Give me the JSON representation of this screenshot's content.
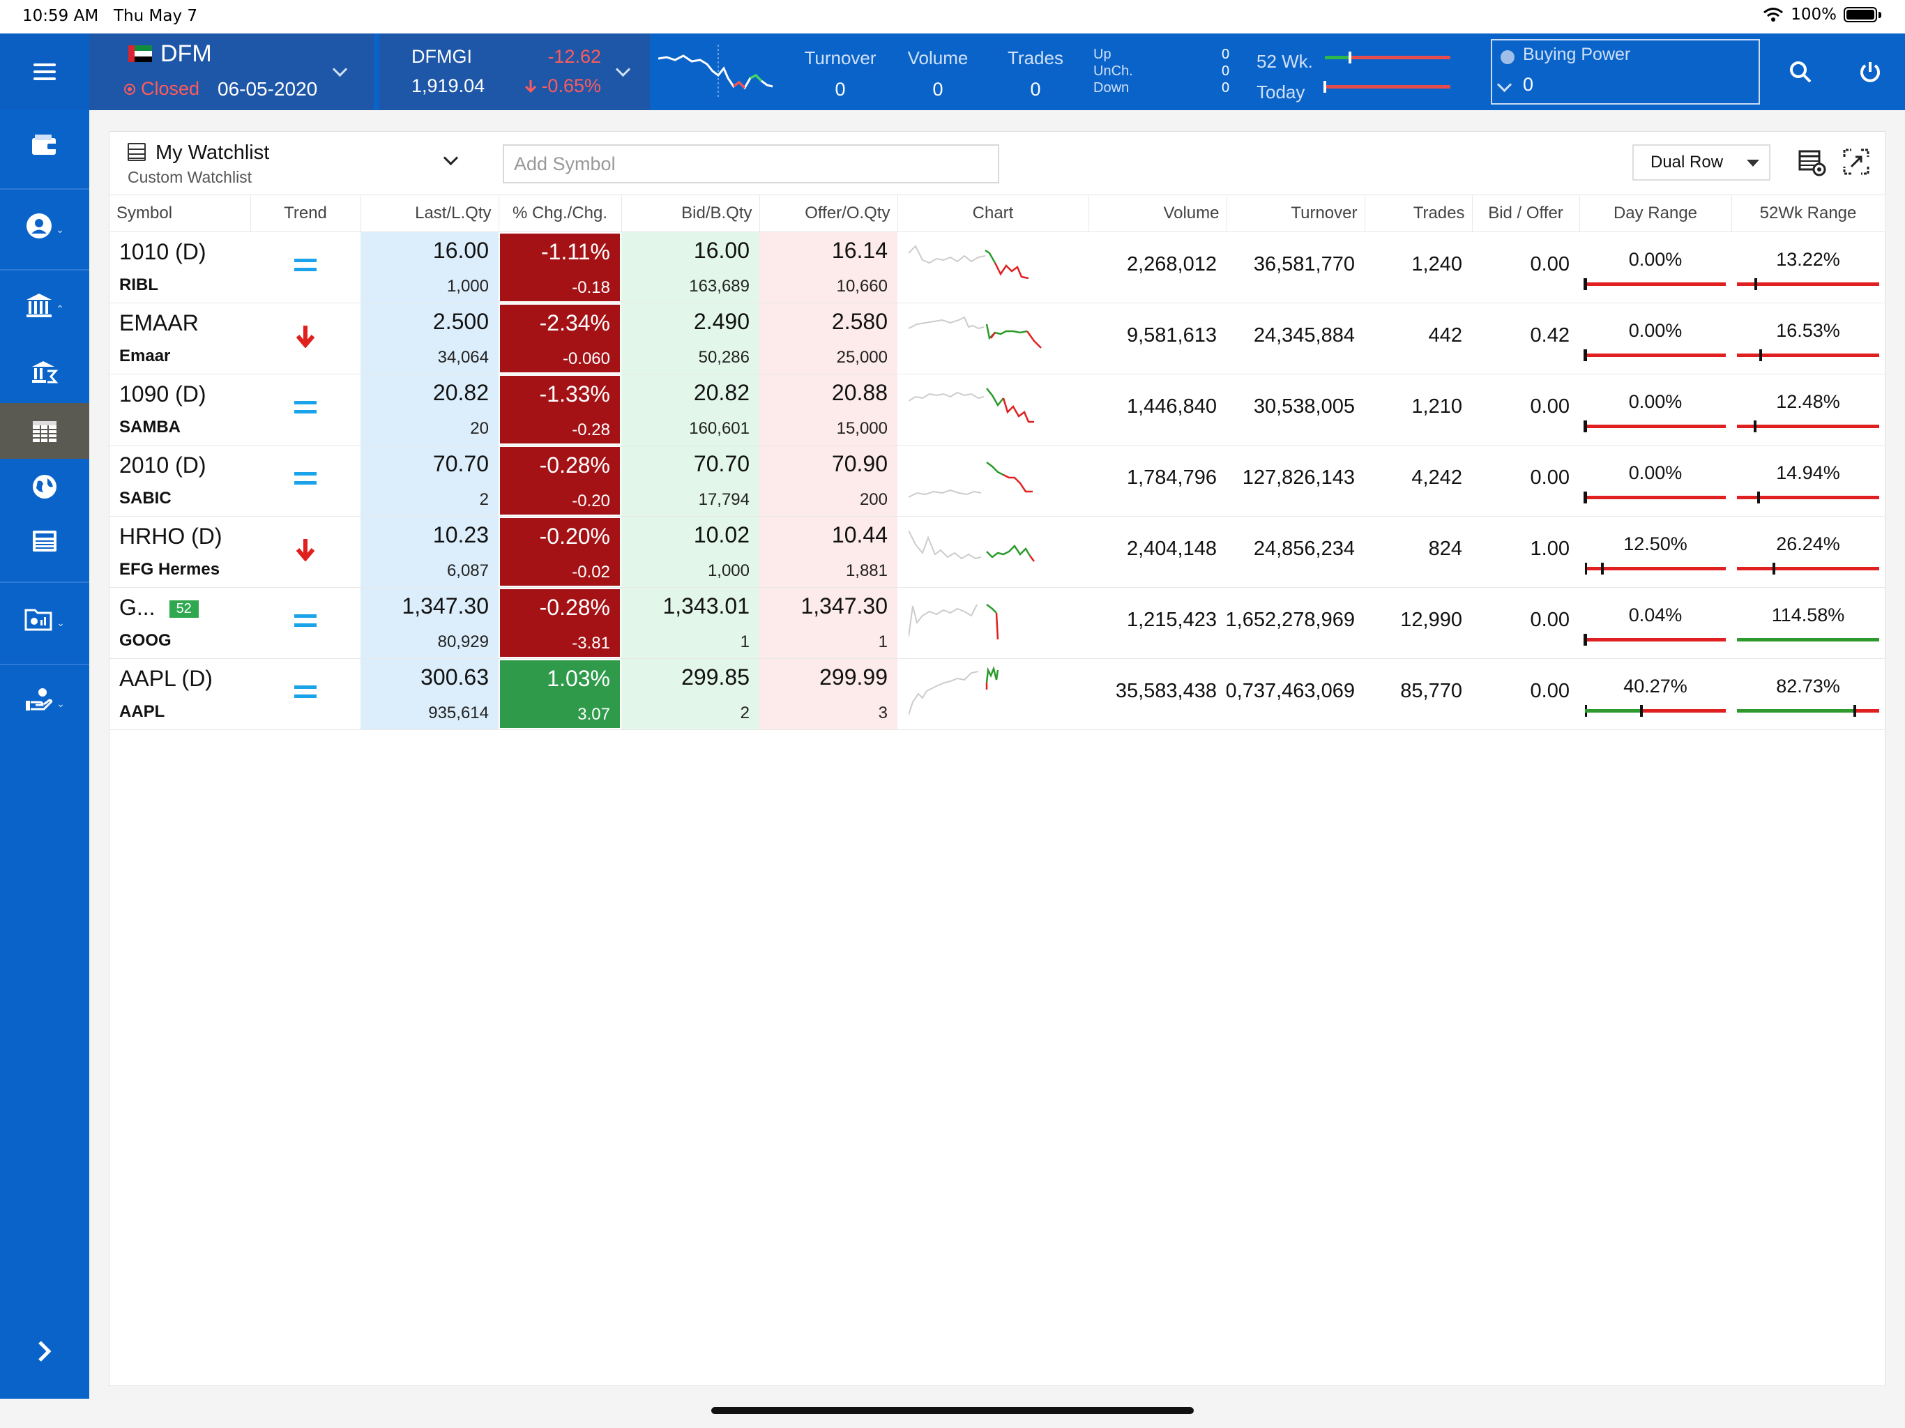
{
  "status_bar": {
    "time": "10:59 AM",
    "date": "Thu May 7",
    "battery": "100%"
  },
  "header": {
    "market": {
      "name": "DFM",
      "status": "Closed",
      "date": "06-05-2020"
    },
    "index": {
      "name": "DFMGI",
      "value": "1,919.04",
      "change": "-12.62",
      "pct": "-0.65%"
    },
    "stats": [
      {
        "label": "Turnover",
        "value": "0"
      },
      {
        "label": "Volume",
        "value": "0"
      },
      {
        "label": "Trades",
        "value": "0"
      }
    ],
    "breadth": {
      "up_label": "Up",
      "unch_label": "UnCh.",
      "down_label": "Down",
      "up": "0",
      "unch": "0",
      "down": "0"
    },
    "range": {
      "wk_label": "52 Wk.",
      "today_label": "Today",
      "wk_level": 0.2,
      "today_level": 0.0
    },
    "buying_power": {
      "label": "Buying Power",
      "value": "0"
    }
  },
  "watchlist": {
    "title": "My Watchlist",
    "subtitle": "Custom Watchlist",
    "search_placeholder": "Add Symbol",
    "view_mode": "Dual Row",
    "columns": [
      "Symbol",
      "Trend",
      "Last/L.Qty",
      "% Chg./Chg.",
      "Bid/B.Qty",
      "Offer/O.Qty",
      "Chart",
      "Volume",
      "Turnover",
      "Trades",
      "Bid / Offer",
      "Day Range",
      "52Wk Range"
    ],
    "rows": [
      {
        "symbol": "1010 (D)",
        "short": "RIBL",
        "badge": "",
        "trend": "flat",
        "last": "16.00",
        "lqty": "1,000",
        "pct": "-1.11%",
        "chg": "-0.18",
        "dir": "neg",
        "bid": "16.00",
        "bqty": "163,689",
        "offer": "16.14",
        "oqty": "10,660",
        "volume": "2,268,012",
        "turnover": "36,581,770",
        "trades": "1,240",
        "bidoffer": "0.00",
        "day_pct": "0.00%",
        "day_level": 0.0,
        "day_color": "red",
        "wk_pct": "13.22%",
        "wk_level": 0.13,
        "wk_color": "red"
      },
      {
        "symbol": "EMAAR",
        "short": "Emaar",
        "badge": "",
        "trend": "down",
        "last": "2.500",
        "lqty": "34,064",
        "pct": "-2.34%",
        "chg": "-0.060",
        "dir": "neg",
        "bid": "2.490",
        "bqty": "50,286",
        "offer": "2.580",
        "oqty": "25,000",
        "volume": "9,581,613",
        "turnover": "24,345,884",
        "trades": "442",
        "bidoffer": "0.42",
        "day_pct": "0.00%",
        "day_level": 0.0,
        "day_color": "red",
        "wk_pct": "16.53%",
        "wk_level": 0.165,
        "wk_color": "red"
      },
      {
        "symbol": "1090 (D)",
        "short": "SAMBA",
        "badge": "",
        "trend": "flat",
        "last": "20.82",
        "lqty": "20",
        "pct": "-1.33%",
        "chg": "-0.28",
        "dir": "neg",
        "bid": "20.82",
        "bqty": "160,601",
        "offer": "20.88",
        "oqty": "15,000",
        "volume": "1,446,840",
        "turnover": "30,538,005",
        "trades": "1,210",
        "bidoffer": "0.00",
        "day_pct": "0.00%",
        "day_level": 0.0,
        "day_color": "red",
        "wk_pct": "12.48%",
        "wk_level": 0.125,
        "wk_color": "red"
      },
      {
        "symbol": "2010 (D)",
        "short": "SABIC",
        "badge": "",
        "trend": "flat",
        "last": "70.70",
        "lqty": "2",
        "pct": "-0.28%",
        "chg": "-0.20",
        "dir": "neg",
        "bid": "70.70",
        "bqty": "17,794",
        "offer": "70.90",
        "oqty": "200",
        "volume": "1,784,796",
        "turnover": "127,826,143",
        "trades": "4,242",
        "bidoffer": "0.00",
        "day_pct": "0.00%",
        "day_level": 0.0,
        "day_color": "red",
        "wk_pct": "14.94%",
        "wk_level": 0.15,
        "wk_color": "red"
      },
      {
        "symbol": "HRHO (D)",
        "short": "EFG Hermes",
        "badge": "",
        "trend": "down",
        "last": "10.23",
        "lqty": "6,087",
        "pct": "-0.20%",
        "chg": "-0.02",
        "dir": "neg",
        "bid": "10.02",
        "bqty": "1,000",
        "offer": "10.44",
        "oqty": "1,881",
        "volume": "2,404,148",
        "turnover": "24,856,234",
        "trades": "824",
        "bidoffer": "1.00",
        "day_pct": "12.50%",
        "day_level": 0.125,
        "day_color": "red",
        "wk_pct": "26.24%",
        "wk_level": 0.26,
        "wk_color": "red"
      },
      {
        "symbol": "G...",
        "short": "GOOG",
        "badge": "52",
        "trend": "flat",
        "last": "1,347.30",
        "lqty": "80,929",
        "pct": "-0.28%",
        "chg": "-3.81",
        "dir": "neg",
        "bid": "1,343.01",
        "bqty": "1",
        "offer": "1,347.30",
        "oqty": "1",
        "volume": "1,215,423",
        "turnover": "1,652,278,969",
        "trades": "12,990",
        "bidoffer": "0.00",
        "day_pct": "0.04%",
        "day_level": 0.0,
        "day_color": "red",
        "wk_pct": "114.58%",
        "wk_level": 1.0,
        "wk_color": "green"
      },
      {
        "symbol": "AAPL (D)",
        "short": "AAPL",
        "badge": "",
        "trend": "flat",
        "last": "300.63",
        "lqty": "935,614",
        "pct": "1.03%",
        "chg": "3.07",
        "dir": "pos",
        "bid": "299.85",
        "bqty": "2",
        "offer": "299.99",
        "oqty": "3",
        "volume": "35,583,438",
        "turnover": "0,737,463,069",
        "trades": "85,770",
        "bidoffer": "0.00",
        "day_pct": "40.27%",
        "day_level": 0.4,
        "day_color": "green",
        "wk_pct": "82.73%",
        "wk_level": 0.83,
        "wk_color": "green"
      }
    ]
  }
}
